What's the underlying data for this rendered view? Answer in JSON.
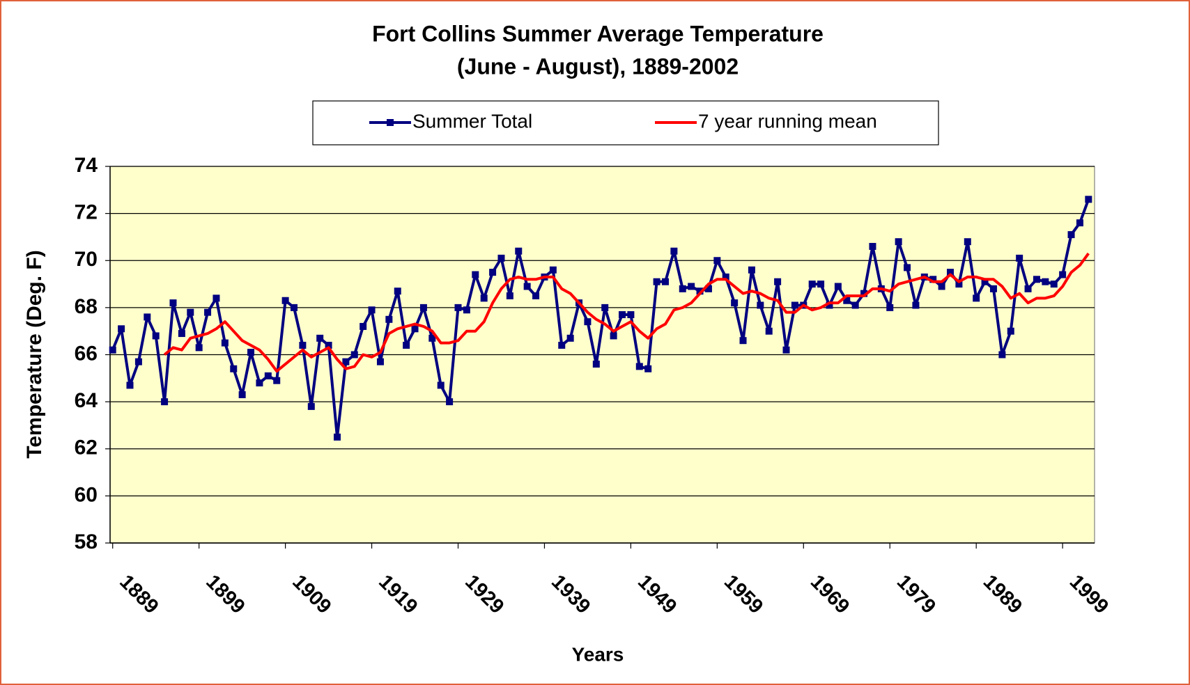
{
  "chart_data": {
    "type": "line",
    "title": [
      "Fort Collins Summer Average Temperature",
      "(June - August), 1889-2002"
    ],
    "xlabel": "Years",
    "ylabel": "Temperature (Deg. F)",
    "x": [
      1889,
      1890,
      1891,
      1892,
      1893,
      1894,
      1895,
      1896,
      1897,
      1898,
      1899,
      1900,
      1901,
      1902,
      1903,
      1904,
      1905,
      1906,
      1907,
      1908,
      1909,
      1910,
      1911,
      1912,
      1913,
      1914,
      1915,
      1916,
      1917,
      1918,
      1919,
      1920,
      1921,
      1922,
      1923,
      1924,
      1925,
      1926,
      1927,
      1928,
      1929,
      1930,
      1931,
      1932,
      1933,
      1934,
      1935,
      1936,
      1937,
      1938,
      1939,
      1940,
      1941,
      1942,
      1943,
      1944,
      1945,
      1946,
      1947,
      1948,
      1949,
      1950,
      1951,
      1952,
      1953,
      1954,
      1955,
      1956,
      1957,
      1958,
      1959,
      1960,
      1961,
      1962,
      1963,
      1964,
      1965,
      1966,
      1967,
      1968,
      1969,
      1970,
      1971,
      1972,
      1973,
      1974,
      1975,
      1976,
      1977,
      1978,
      1979,
      1980,
      1981,
      1982,
      1983,
      1984,
      1985,
      1986,
      1987,
      1988,
      1989,
      1990,
      1991,
      1992,
      1993,
      1994,
      1995,
      1996,
      1997,
      1998,
      1999,
      2000,
      2001,
      2002
    ],
    "series": [
      {
        "name": "Summer Total",
        "color": "#000080",
        "marker": "square",
        "values": [
          66.2,
          67.1,
          64.7,
          65.7,
          67.6,
          66.8,
          64.0,
          68.2,
          66.9,
          67.8,
          66.3,
          67.8,
          68.4,
          66.5,
          65.4,
          64.3,
          66.1,
          64.8,
          65.1,
          64.9,
          68.3,
          68.0,
          66.4,
          63.8,
          66.7,
          66.4,
          62.5,
          65.7,
          66.0,
          67.2,
          67.9,
          65.7,
          67.5,
          68.7,
          66.4,
          67.1,
          68.0,
          66.7,
          64.7,
          64.0,
          68.0,
          67.9,
          69.4,
          68.4,
          69.5,
          70.1,
          68.5,
          70.4,
          68.9,
          68.5,
          69.3,
          69.6,
          66.4,
          66.7,
          68.2,
          67.4,
          65.6,
          68.0,
          66.8,
          67.7,
          67.7,
          65.5,
          65.4,
          69.1,
          69.1,
          70.4,
          68.8,
          68.9,
          68.7,
          68.8,
          70.0,
          69.3,
          68.2,
          66.6,
          69.6,
          68.1,
          67.0,
          69.1,
          66.2,
          68.1,
          68.1,
          69.0,
          69.0,
          68.1,
          68.9,
          68.3,
          68.1,
          68.6,
          70.6,
          68.8,
          68.0,
          70.8,
          69.7,
          68.1,
          69.3,
          69.2,
          68.9,
          69.5,
          69.0,
          70.8,
          68.4,
          69.1,
          68.8,
          66.0,
          67.0,
          70.1,
          68.8,
          69.2,
          69.1,
          69.0,
          69.4,
          71.1,
          71.6,
          72.6
        ]
      },
      {
        "name": "7 year running mean",
        "color": "#ff0000",
        "marker": "none",
        "values": [
          null,
          null,
          null,
          null,
          null,
          null,
          66.0,
          66.3,
          66.2,
          66.7,
          66.8,
          66.9,
          67.1,
          67.4,
          67.0,
          66.6,
          66.4,
          66.2,
          65.8,
          65.3,
          65.6,
          65.9,
          66.2,
          65.9,
          66.1,
          66.3,
          65.8,
          65.4,
          65.5,
          66.0,
          65.9,
          66.1,
          66.9,
          67.1,
          67.2,
          67.3,
          67.2,
          67.0,
          66.5,
          66.5,
          66.6,
          67.0,
          67.0,
          67.4,
          68.2,
          68.8,
          69.2,
          69.3,
          69.2,
          69.2,
          69.3,
          69.3,
          68.8,
          68.6,
          68.2,
          67.8,
          67.5,
          67.3,
          67.0,
          67.2,
          67.4,
          67.0,
          66.7,
          67.1,
          67.3,
          67.9,
          68.0,
          68.2,
          68.6,
          69.0,
          69.2,
          69.2,
          68.9,
          68.6,
          68.7,
          68.6,
          68.4,
          68.3,
          67.8,
          67.8,
          68.1,
          67.9,
          68.0,
          68.2,
          68.2,
          68.5,
          68.5,
          68.5,
          68.8,
          68.8,
          68.7,
          69.0,
          69.1,
          69.2,
          69.3,
          69.1,
          69.1,
          69.4,
          69.1,
          69.3,
          69.3,
          69.2,
          69.2,
          68.9,
          68.4,
          68.6,
          68.2,
          68.4,
          68.4,
          68.5,
          68.9,
          69.5,
          69.8,
          70.3
        ]
      }
    ],
    "xlim": [
      1888.7,
      2002.7
    ],
    "xticks": [
      1889,
      1899,
      1909,
      1919,
      1929,
      1939,
      1949,
      1959,
      1969,
      1979,
      1989,
      1999
    ],
    "ylim": [
      58,
      74
    ],
    "yticks": [
      58,
      60,
      62,
      64,
      66,
      68,
      70,
      72,
      74
    ],
    "grid": true,
    "legend": "top",
    "plot_background": "#ffffcc"
  }
}
